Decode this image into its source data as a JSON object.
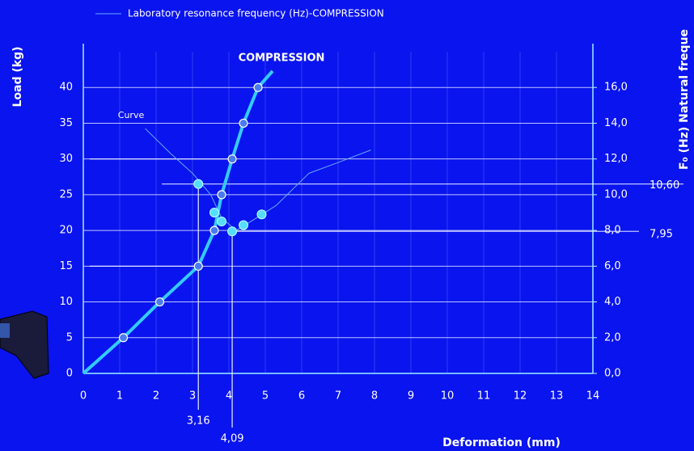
{
  "chart_data": {
    "type": "line",
    "legend_text": "Laboratory resonance frequency (Hz)-COMPRESSION",
    "xlabel": "Deformation (mm)",
    "ylabel": "Load (kg)",
    "y2label": "F₀ (Hz) Natural freque",
    "xlim": [
      0,
      14
    ],
    "xticks": [
      0,
      1,
      2,
      3,
      4,
      5,
      6,
      7,
      8,
      9,
      10,
      11,
      12,
      13,
      14
    ],
    "ylim": [
      0,
      45
    ],
    "yticks": [
      0,
      5,
      10,
      15,
      20,
      25,
      30,
      35,
      40
    ],
    "y2lim": [
      0,
      18
    ],
    "y2ticks": [
      {
        "value": 0,
        "label": "0,0"
      },
      {
        "value": 2,
        "label": "2,0"
      },
      {
        "value": 4,
        "label": "4,0"
      },
      {
        "value": 6,
        "label": "6,0"
      },
      {
        "value": 8,
        "label": "8,0"
      },
      {
        "value": 10,
        "label": "10,0"
      },
      {
        "value": 12,
        "label": "12,0"
      },
      {
        "value": 14,
        "label": "14,0"
      },
      {
        "value": 16,
        "label": "16,0"
      }
    ],
    "grid": true,
    "series": [
      {
        "label": "COMPRESSION",
        "color": "#33ccff",
        "x": [
          0,
          1.1,
          2.1,
          3.16,
          3.6,
          3.8,
          4.09,
          4.4,
          4.8,
          5.2
        ],
        "values": [
          0,
          5,
          10,
          15,
          20,
          25,
          30,
          35,
          40,
          42.3
        ],
        "markers": [
          false,
          true,
          true,
          true,
          true,
          true,
          true,
          true,
          true,
          false
        ]
      },
      {
        "name": "Laboratory resonance frequency (Hz)-COMPRESSION",
        "label": "Curve",
        "color": "#66aaff",
        "axis": "y2",
        "x": [
          1.7,
          2.4,
          3.0,
          3.5,
          3.8,
          4.2,
          4.6,
          5.3,
          6.2,
          7.0,
          7.9
        ],
        "values": [
          13.7,
          12.3,
          11.2,
          10.0,
          8.7,
          8.0,
          8.5,
          9.4,
          11.2,
          11.8,
          12.5
        ]
      },
      {
        "color": "#55ddff",
        "axis": "y2",
        "style": "points",
        "x": [
          3.16,
          3.6,
          3.8,
          4.09,
          4.4,
          4.9
        ],
        "values": [
          10.6,
          9.0,
          8.5,
          7.95,
          8.3,
          8.9
        ]
      }
    ],
    "load_markers": [
      30,
      15
    ],
    "x_markers": [
      {
        "value": 3.16,
        "label": "3,16"
      },
      {
        "value": 4.09,
        "label": "4,09"
      }
    ],
    "y2_markers": [
      {
        "value": 10.6,
        "label": "10,60"
      },
      {
        "value": 7.95,
        "label": "7,95"
      }
    ]
  }
}
